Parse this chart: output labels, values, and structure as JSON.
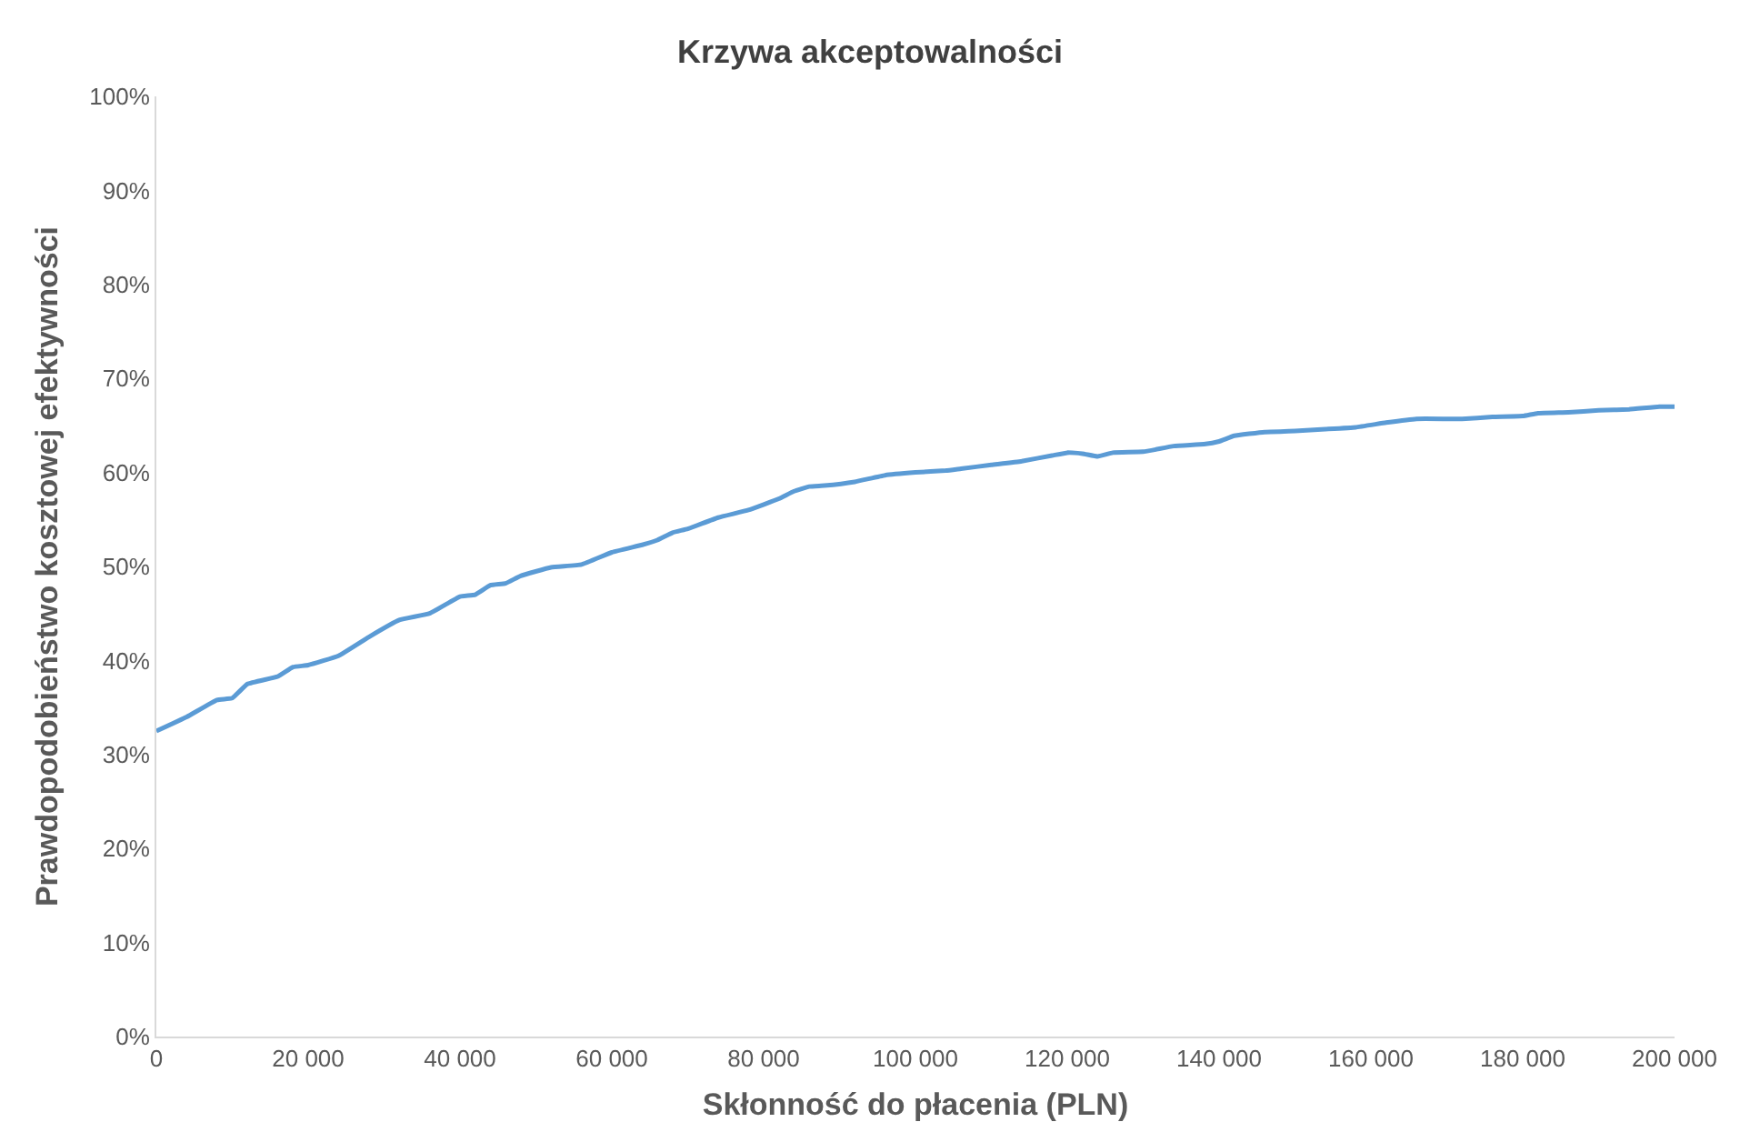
{
  "chart_data": {
    "type": "line",
    "title": "Krzywa akceptowalności",
    "xlabel": "Skłonność do płacenia (PLN)",
    "ylabel": "Prawdopodobieństwo kosztowej efektywności",
    "x": [
      0,
      4000,
      8000,
      10000,
      12000,
      16000,
      18000,
      20000,
      24000,
      28000,
      32000,
      36000,
      40000,
      42000,
      44000,
      46000,
      48000,
      52000,
      56000,
      60000,
      64000,
      66000,
      68000,
      70000,
      74000,
      78000,
      82000,
      84000,
      86000,
      88000,
      92000,
      96000,
      100000,
      104000,
      106000,
      110000,
      114000,
      118000,
      120000,
      122000,
      124000,
      126000,
      130000,
      134000,
      138000,
      140000,
      142000,
      146000,
      150000,
      154000,
      158000,
      162000,
      166000,
      170000,
      172000,
      176000,
      180000,
      182000,
      186000,
      190000,
      194000,
      198000,
      200000
    ],
    "series": [
      {
        "color": "#5b9bd5",
        "values": [
          32.5,
          34,
          35.8,
          36,
          37.5,
          38.3,
          39.3,
          39.5,
          40.5,
          42.5,
          44.3,
          45,
          46.8,
          47,
          48,
          48.2,
          49,
          49.9,
          50.2,
          51.5,
          52.3,
          52.8,
          53.6,
          54,
          55.2,
          56,
          57.2,
          58,
          58.5,
          58.6,
          59,
          59.7,
          60,
          60.2,
          60.4,
          60.8,
          61.2,
          61.8,
          62.1,
          62,
          61.7,
          62.1,
          62.2,
          62.8,
          63,
          63.3,
          63.9,
          64.3,
          64.4,
          64.6,
          64.8,
          65.3,
          65.7,
          65.7,
          65.7,
          65.9,
          66,
          66.3,
          66.4,
          66.6,
          66.7,
          67,
          67
        ]
      }
    ],
    "xlim": [
      0,
      200000
    ],
    "xticks": [
      {
        "value": 0,
        "label": "0"
      },
      {
        "value": 20000,
        "label": "20 000"
      },
      {
        "value": 40000,
        "label": "40 000"
      },
      {
        "value": 60000,
        "label": "60 000"
      },
      {
        "value": 80000,
        "label": "80 000"
      },
      {
        "value": 100000,
        "label": "100 000"
      },
      {
        "value": 120000,
        "label": "120 000"
      },
      {
        "value": 140000,
        "label": "140 000"
      },
      {
        "value": 160000,
        "label": "160 000"
      },
      {
        "value": 180000,
        "label": "180 000"
      },
      {
        "value": 200000,
        "label": "200 000"
      }
    ],
    "ylim": [
      0,
      100
    ],
    "yticks": [
      {
        "value": 0,
        "label": "0%"
      },
      {
        "value": 10,
        "label": "10%"
      },
      {
        "value": 20,
        "label": "20%"
      },
      {
        "value": 30,
        "label": "30%"
      },
      {
        "value": 40,
        "label": "40%"
      },
      {
        "value": 50,
        "label": "50%"
      },
      {
        "value": 60,
        "label": "60%"
      },
      {
        "value": 70,
        "label": "70%"
      },
      {
        "value": 80,
        "label": "80%"
      },
      {
        "value": 90,
        "label": "90%"
      },
      {
        "value": 100,
        "label": "100%"
      }
    ],
    "grid": false,
    "line_style": "solid",
    "marker": "none"
  }
}
